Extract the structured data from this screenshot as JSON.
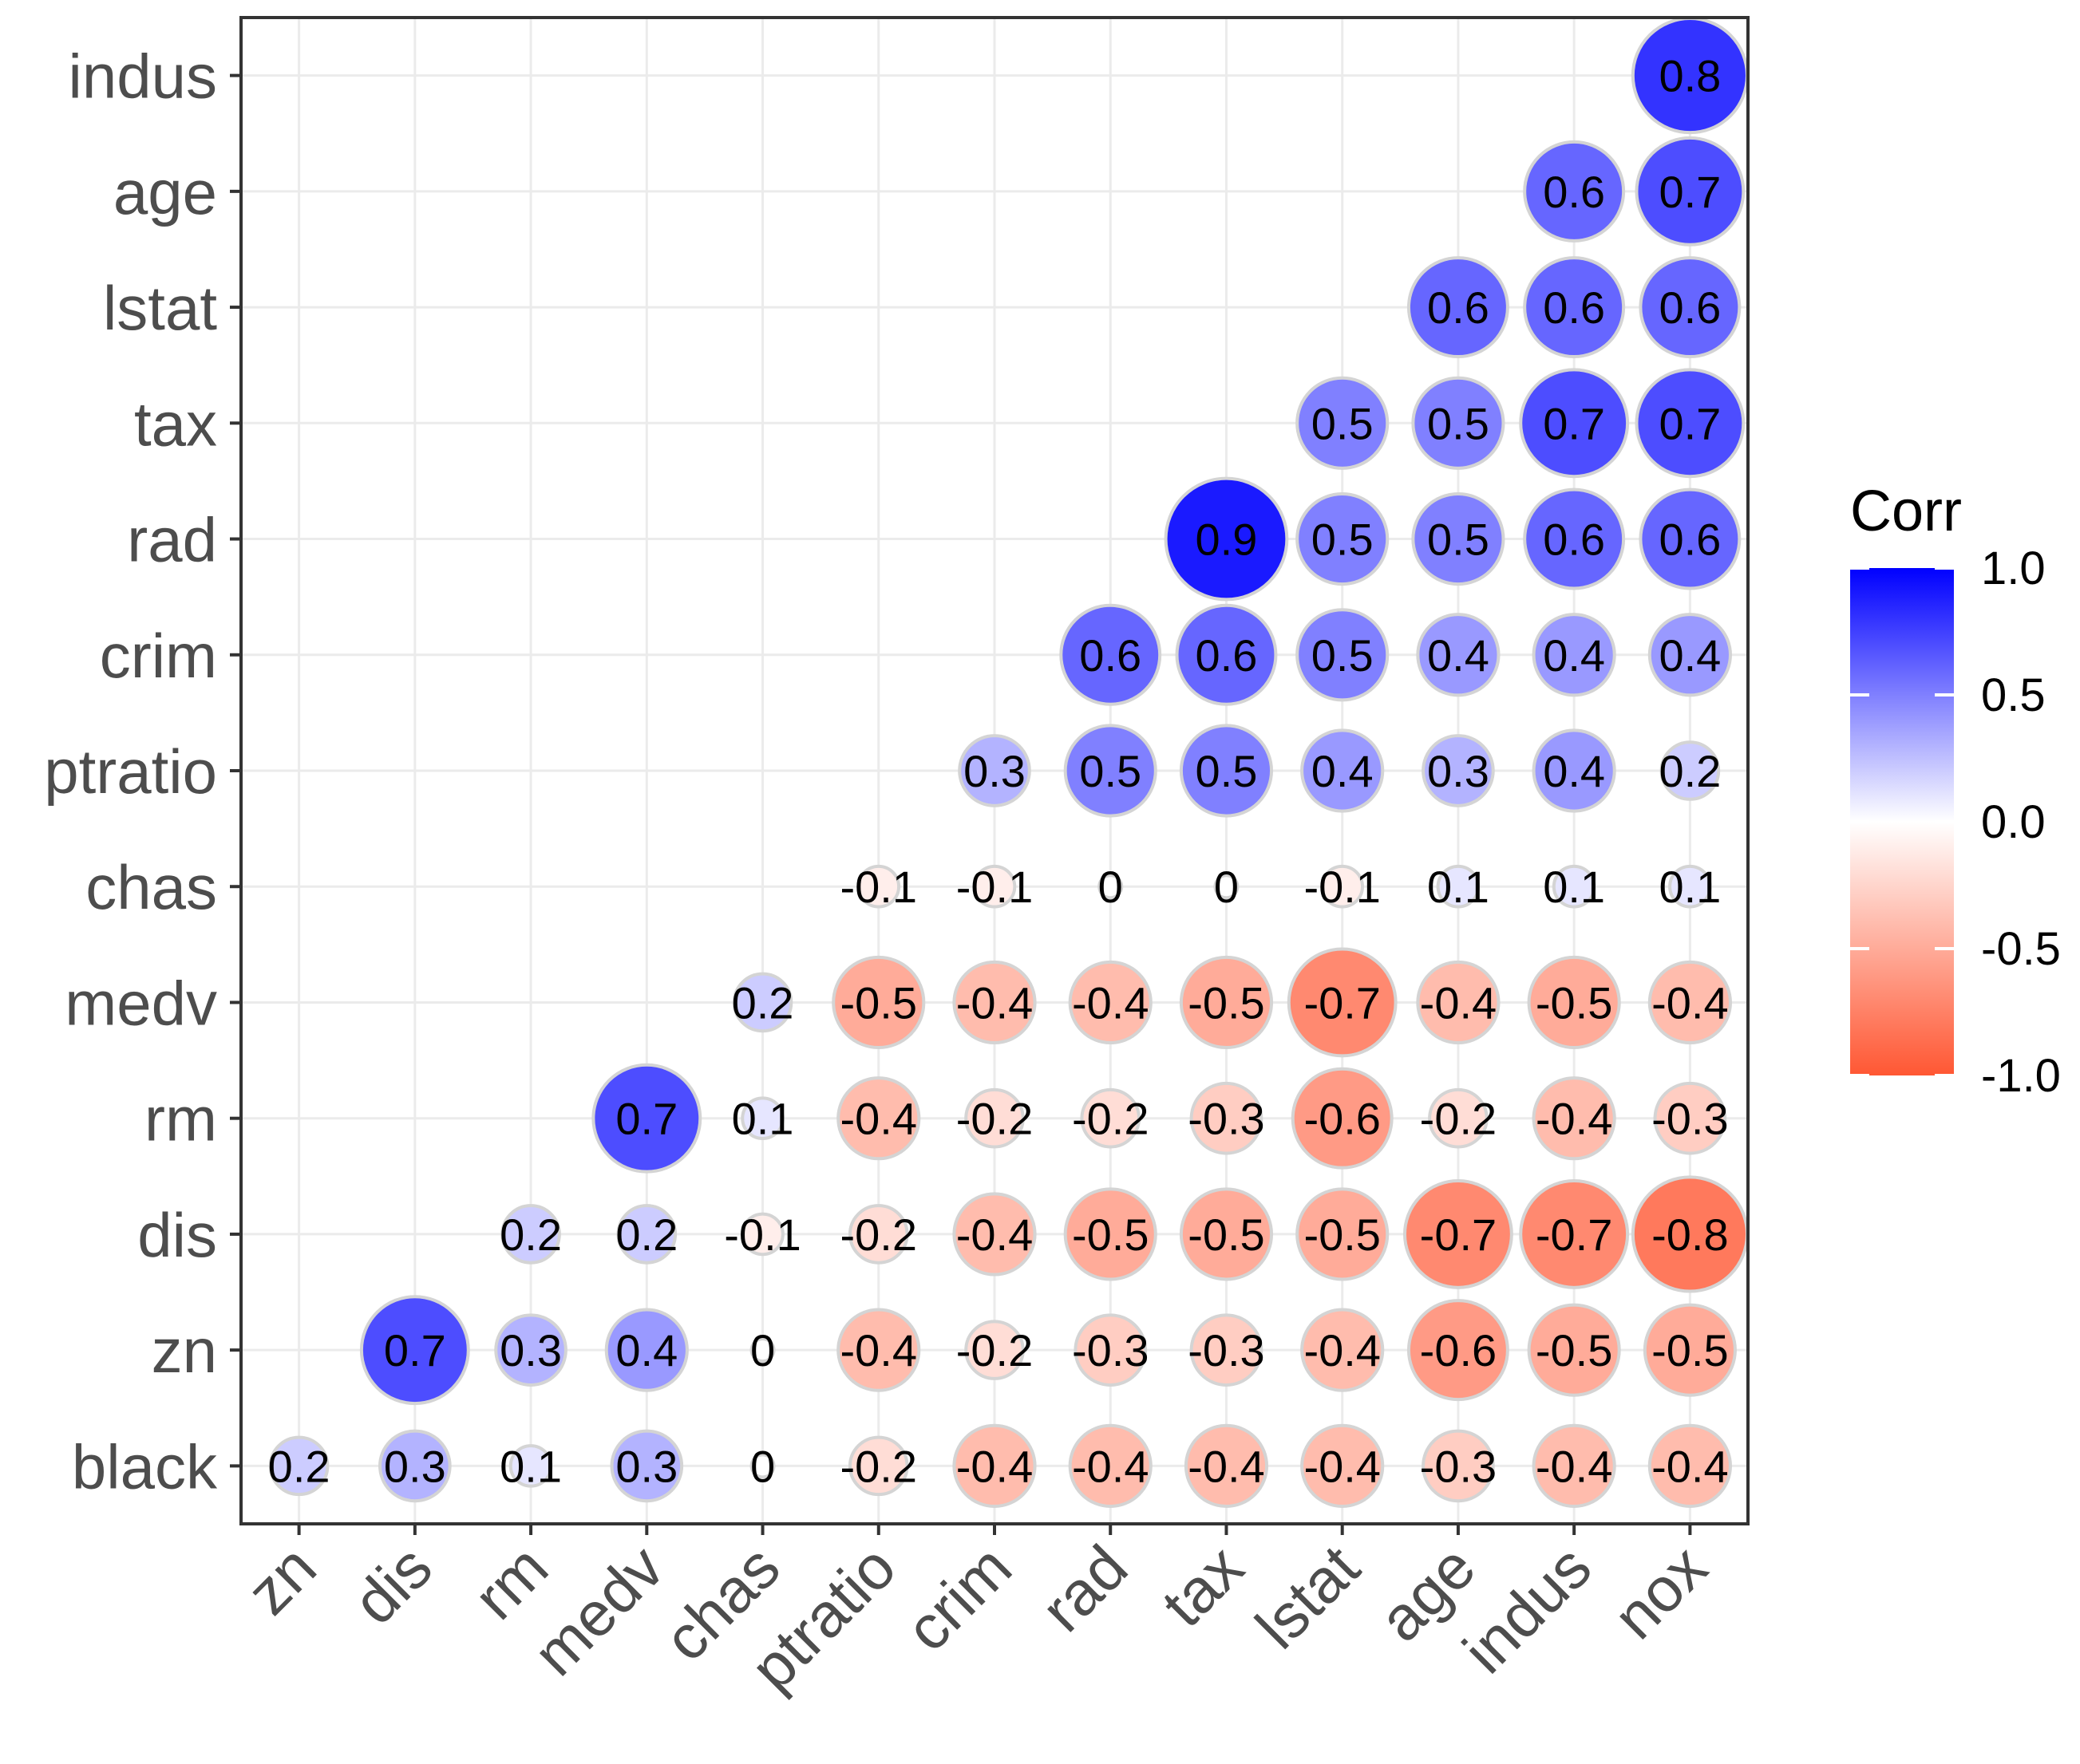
{
  "chart_data": {
    "type": "heatmap",
    "subtype": "correlation-circle-lower-triangle",
    "title": "",
    "xlabel": "",
    "ylabel": "",
    "x_categories": [
      "zn",
      "dis",
      "rm",
      "medv",
      "chas",
      "ptratio",
      "crim",
      "rad",
      "tax",
      "lstat",
      "age",
      "indus",
      "nox"
    ],
    "y_categories_top_to_bottom": [
      "indus",
      "age",
      "lstat",
      "tax",
      "rad",
      "crim",
      "ptratio",
      "chas",
      "medv",
      "rm",
      "dis",
      "zn",
      "black"
    ],
    "matrix": [
      [
        null,
        null,
        null,
        null,
        null,
        null,
        null,
        null,
        null,
        null,
        null,
        null,
        0.8
      ],
      [
        null,
        null,
        null,
        null,
        null,
        null,
        null,
        null,
        null,
        null,
        null,
        0.6,
        0.7
      ],
      [
        null,
        null,
        null,
        null,
        null,
        null,
        null,
        null,
        null,
        null,
        0.6,
        0.6,
        0.6
      ],
      [
        null,
        null,
        null,
        null,
        null,
        null,
        null,
        null,
        null,
        0.5,
        0.5,
        0.7,
        0.7
      ],
      [
        null,
        null,
        null,
        null,
        null,
        null,
        null,
        null,
        0.9,
        0.5,
        0.5,
        0.6,
        0.6
      ],
      [
        null,
        null,
        null,
        null,
        null,
        null,
        null,
        0.6,
        0.6,
        0.5,
        0.4,
        0.4,
        0.4
      ],
      [
        null,
        null,
        null,
        null,
        null,
        null,
        0.3,
        0.5,
        0.5,
        0.4,
        0.3,
        0.4,
        0.2
      ],
      [
        null,
        null,
        null,
        null,
        null,
        -0.1,
        -0.1,
        0,
        0,
        -0.1,
        0.1,
        0.1,
        0.1
      ],
      [
        null,
        null,
        null,
        null,
        0.2,
        -0.5,
        -0.4,
        -0.4,
        -0.5,
        -0.7,
        -0.4,
        -0.5,
        -0.4
      ],
      [
        null,
        null,
        null,
        0.7,
        0.1,
        -0.4,
        -0.2,
        -0.2,
        -0.3,
        -0.6,
        -0.2,
        -0.4,
        -0.3
      ],
      [
        null,
        null,
        0.2,
        0.2,
        -0.1,
        -0.2,
        -0.4,
        -0.5,
        -0.5,
        -0.5,
        -0.7,
        -0.7,
        -0.8
      ],
      [
        null,
        0.7,
        0.3,
        0.4,
        0,
        -0.4,
        -0.2,
        -0.3,
        -0.3,
        -0.4,
        -0.6,
        -0.5,
        -0.5
      ],
      [
        0.2,
        0.3,
        0.1,
        0.3,
        0,
        -0.2,
        -0.4,
        -0.4,
        -0.4,
        -0.4,
        -0.3,
        -0.4,
        -0.4
      ]
    ],
    "value_range": [
      -1,
      1
    ],
    "grid": true,
    "legend": {
      "title": "Corr",
      "ticks": [
        "1.0",
        "0.5",
        "0.0",
        "-0.5",
        "-1.0"
      ],
      "tick_values": [
        1,
        0.5,
        0,
        -0.5,
        -1
      ],
      "placement": "right"
    },
    "colors": {
      "high": "#0000FF",
      "mid": "#FFFFFF",
      "low": "#FF5733",
      "circle_outline": "#D4D4D4",
      "gridline": "#EBEBEB",
      "panel_border": "#333333",
      "axis_text": "#4D4D4D"
    }
  }
}
